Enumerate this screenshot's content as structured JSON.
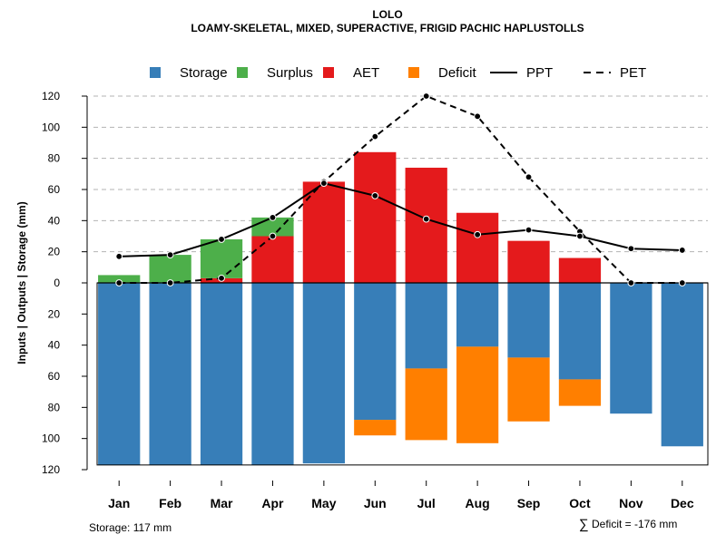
{
  "chart_data": {
    "type": "bar",
    "title": "LOLO",
    "subtitle": "LOAMY-SKELETAL, MIXED, SUPERACTIVE, FRIGID PACHIC HAPLUSTOLLS",
    "ylabel": "Inputs | Outputs | Storage    (mm)",
    "ylim": [
      -120,
      120
    ],
    "y_ticks": [
      120,
      100,
      80,
      60,
      40,
      20,
      0,
      -20,
      -40,
      -60,
      -80,
      -100,
      -120
    ],
    "y_tick_labels": [
      "120",
      "100",
      "80",
      "60",
      "40",
      "20",
      "0",
      "20",
      "40",
      "60",
      "80",
      "100",
      "120"
    ],
    "categories": [
      "Jan",
      "Feb",
      "Mar",
      "Apr",
      "May",
      "Jun",
      "Jul",
      "Aug",
      "Sep",
      "Oct",
      "Nov",
      "Dec"
    ],
    "grid": true,
    "legend_position": "top",
    "legend": [
      {
        "name": "Storage",
        "kind": "box",
        "color": "#377EB8"
      },
      {
        "name": "Surplus",
        "kind": "box",
        "color": "#4DAF4A"
      },
      {
        "name": "AET",
        "kind": "box",
        "color": "#E41A1C"
      },
      {
        "name": "Deficit",
        "kind": "box",
        "color": "#FF7F00"
      },
      {
        "name": "PPT",
        "kind": "solid-line",
        "color": "#000000"
      },
      {
        "name": "PET",
        "kind": "dashed-line",
        "color": "#000000"
      }
    ],
    "series": [
      {
        "name": "AET",
        "color": "#E41A1C",
        "values": [
          0,
          0,
          3,
          30,
          65,
          84,
          74,
          45,
          27,
          16,
          0,
          0
        ]
      },
      {
        "name": "Surplus",
        "color": "#4DAF4A",
        "values": [
          5,
          18,
          25,
          12,
          0,
          0,
          0,
          0,
          0,
          0,
          0,
          0
        ]
      },
      {
        "name": "Storage",
        "color": "#377EB8",
        "values": [
          117,
          117,
          117,
          117,
          116,
          88,
          55,
          41,
          48,
          62,
          84,
          105
        ]
      },
      {
        "name": "Deficit",
        "color": "#FF7F00",
        "values": [
          0,
          0,
          0,
          0,
          0,
          10,
          46,
          62,
          41,
          17,
          0,
          0
        ]
      },
      {
        "name": "PPT",
        "color": "#000000",
        "values": [
          17,
          18,
          28,
          42,
          64,
          56,
          41,
          31,
          34,
          30,
          22,
          21
        ]
      },
      {
        "name": "PET",
        "color": "#000000",
        "values": [
          0,
          0,
          3,
          30,
          65,
          94,
          120,
          107,
          68,
          33,
          0,
          0
        ]
      }
    ],
    "storage_capacity": 117,
    "annotations": {
      "storage_note": "Storage: 117 mm",
      "deficit_symbol": "∑",
      "deficit_note": "Deficit = -176 mm"
    }
  }
}
